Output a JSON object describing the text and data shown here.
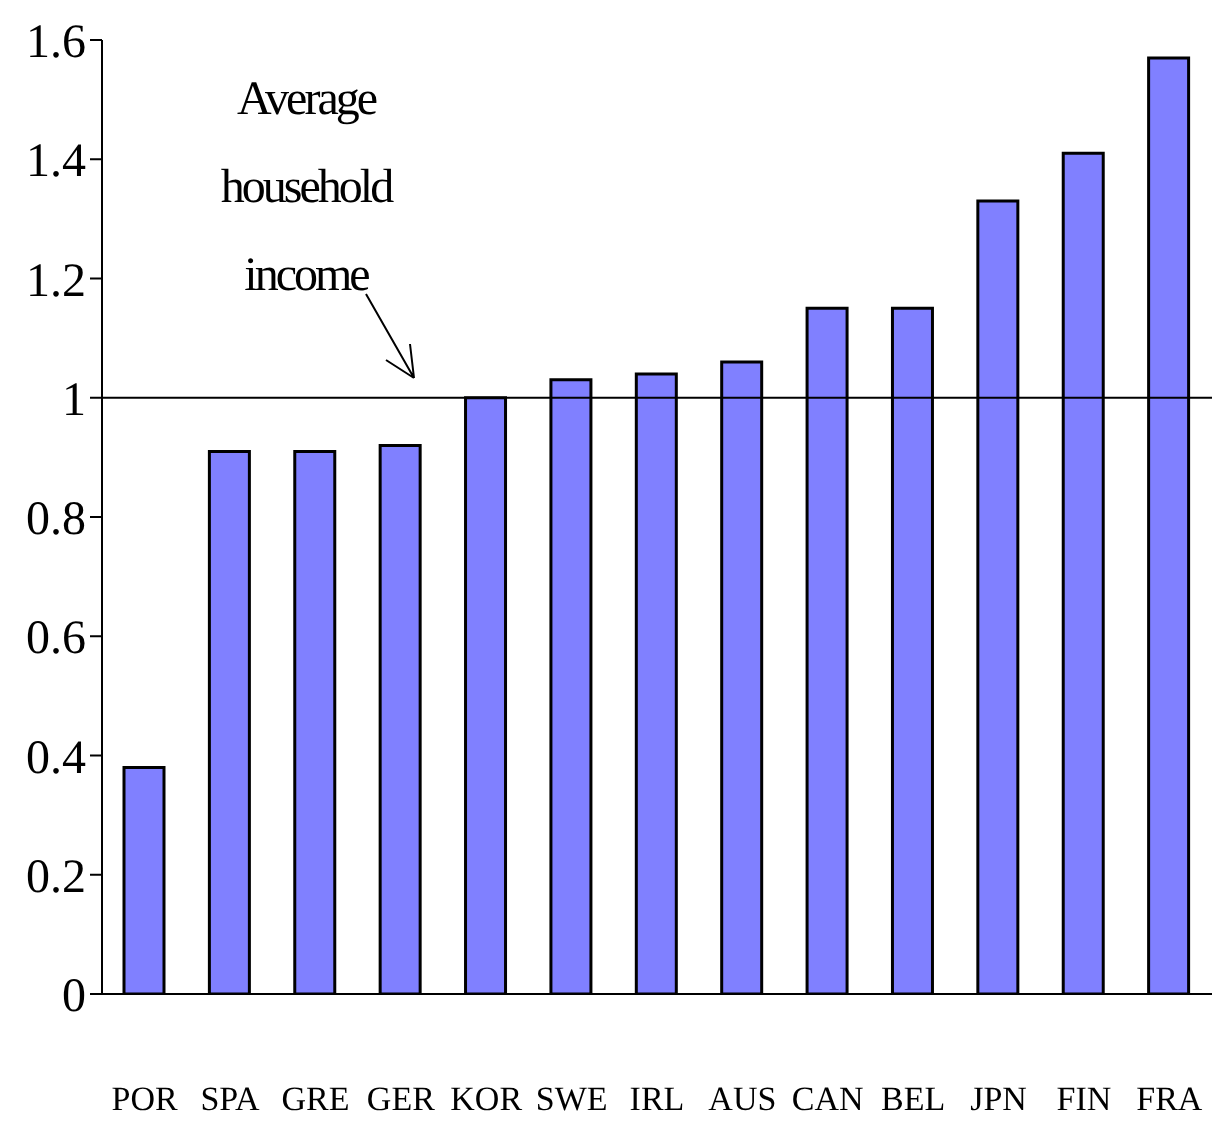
{
  "chart_data": {
    "type": "bar",
    "categories": [
      "POR",
      "SPA",
      "GRE",
      "GER",
      "KOR",
      "SWE",
      "IRL",
      "AUS",
      "CAN",
      "BEL",
      "JPN",
      "FIN",
      "FRA"
    ],
    "values": [
      0.38,
      0.91,
      0.91,
      0.92,
      1.0,
      1.03,
      1.04,
      1.06,
      1.15,
      1.15,
      1.33,
      1.41,
      1.57
    ],
    "color": "#8080ff",
    "ylim": [
      0,
      1.6
    ],
    "yticks": [
      0,
      0.2,
      0.4,
      0.6,
      0.8,
      1,
      1.2,
      1.4,
      1.6
    ],
    "ref_lines": [
      {
        "axis": "y",
        "value": 1,
        "color": "#000000"
      }
    ],
    "annotations": [
      "Average household income"
    ],
    "grid": false,
    "legend": false
  }
}
